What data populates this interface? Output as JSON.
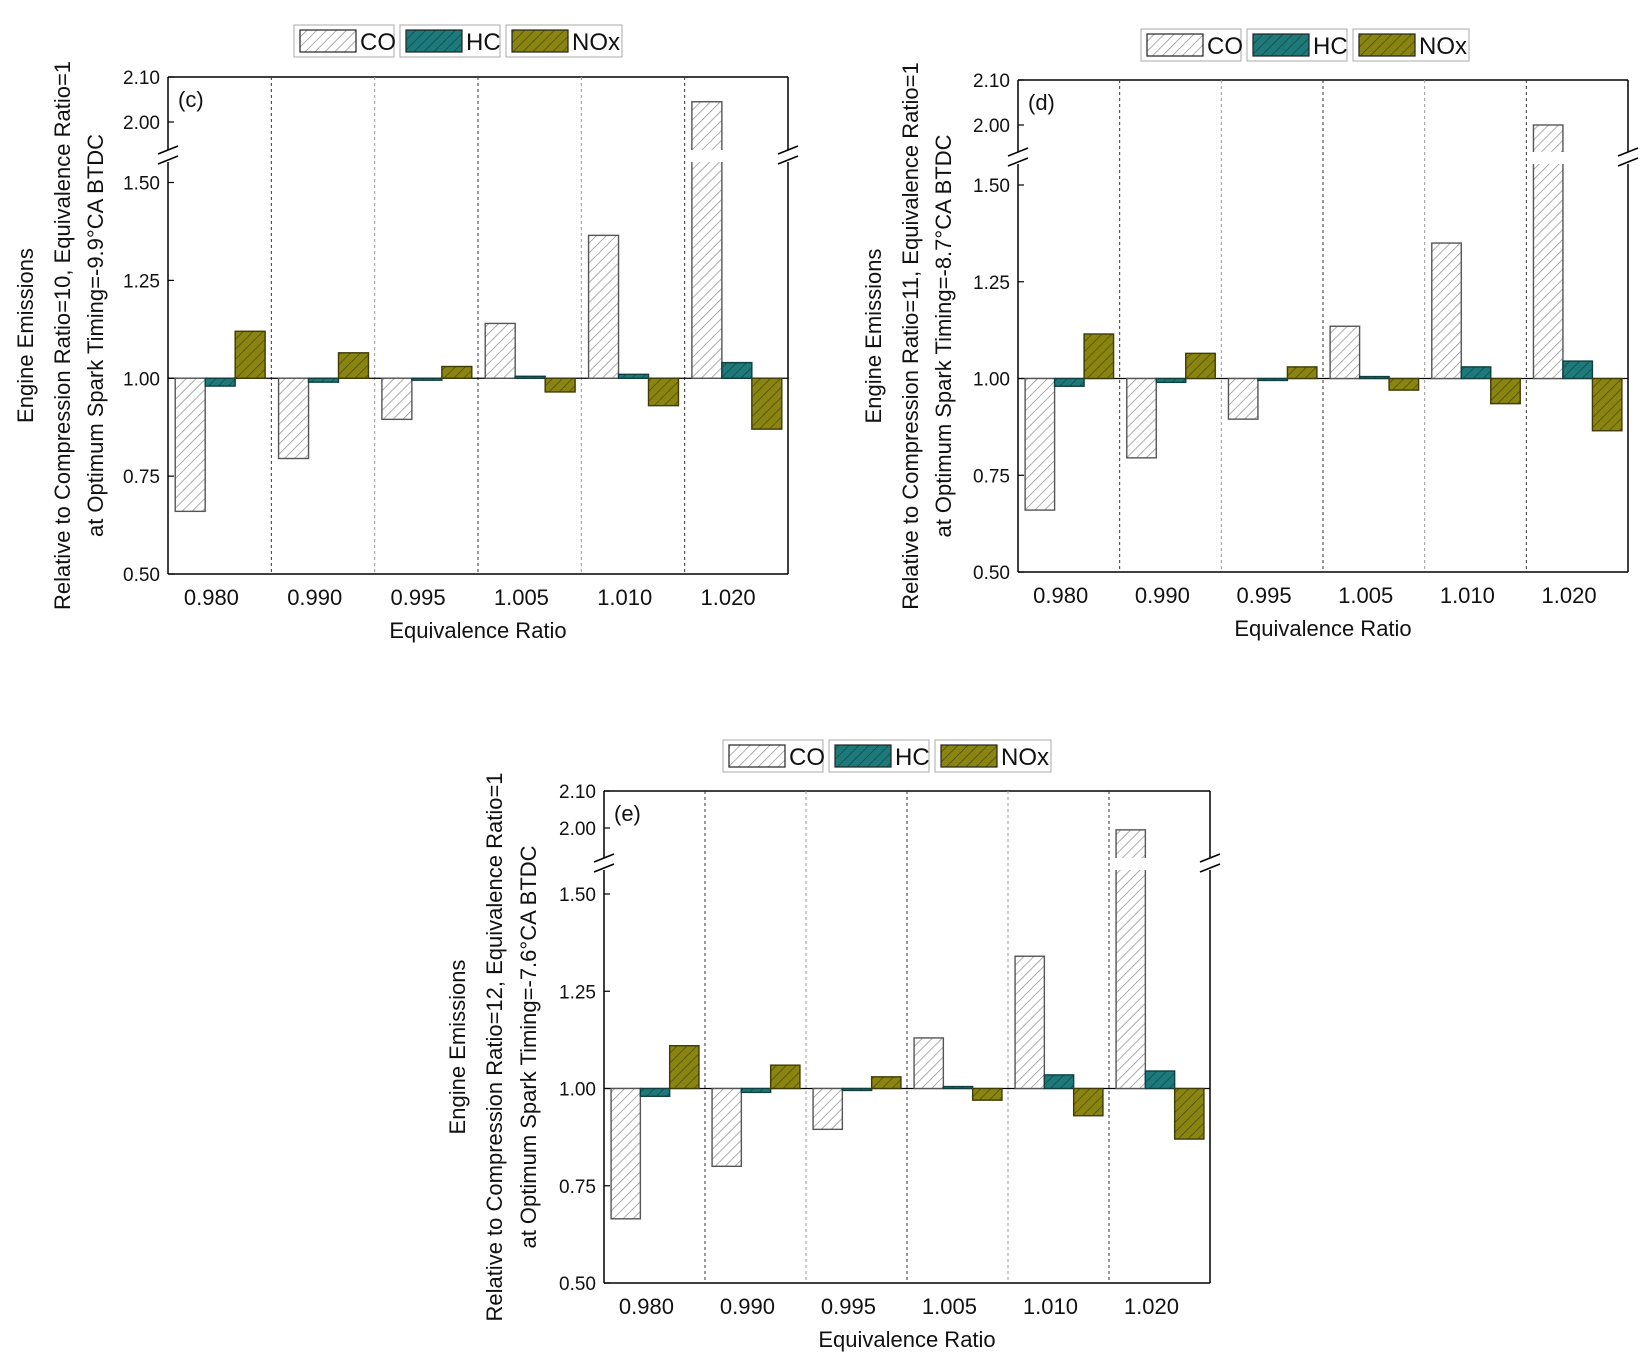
{
  "chart_data": [
    {
      "type": "bar",
      "panel_label": "(c)",
      "ylabel_lines": [
        "Engine Emissions",
        "Relative to Compression Ratio=10, Equivalence Ratio=1",
        "at Optimum Spark Timing=-9.9°CA BTDC"
      ],
      "xlabel": "Equivalence Ratio",
      "categories": [
        "0.980",
        "0.990",
        "0.995",
        "1.005",
        "1.010",
        "1.020"
      ],
      "y_ticks_lower": [
        "0.50",
        "0.75",
        "1.00",
        "1.25",
        "1.50"
      ],
      "y_ticks_upper": [
        "2.00",
        "2.10"
      ],
      "ylim_lower": [
        0.5,
        1.6
      ],
      "ylim_upper": [
        1.96,
        2.1
      ],
      "baseline": 1.0,
      "series": [
        {
          "name": "CO",
          "values": [
            0.66,
            0.795,
            0.895,
            1.14,
            1.365,
            2.045
          ]
        },
        {
          "name": "HC",
          "values": [
            0.98,
            0.99,
            0.995,
            1.005,
            1.01,
            1.04
          ]
        },
        {
          "name": "NOx",
          "values": [
            1.12,
            1.065,
            1.03,
            0.965,
            0.93,
            0.87
          ]
        }
      ]
    },
    {
      "type": "bar",
      "panel_label": "(d)",
      "ylabel_lines": [
        "Engine Emissions",
        "Relative to Compression Ratio=11, Equivalence Ratio=1",
        "at Optimum Spark Timing=-8.7°CA BTDC"
      ],
      "xlabel": "Equivalence Ratio",
      "categories": [
        "0.980",
        "0.990",
        "0.995",
        "1.005",
        "1.010",
        "1.020"
      ],
      "y_ticks_lower": [
        "0.50",
        "0.75",
        "1.00",
        "1.25",
        "1.50"
      ],
      "y_ticks_upper": [
        "2.00",
        "2.10"
      ],
      "ylim_lower": [
        0.5,
        1.6
      ],
      "ylim_upper": [
        1.96,
        2.1
      ],
      "baseline": 1.0,
      "series": [
        {
          "name": "CO",
          "values": [
            0.66,
            0.795,
            0.895,
            1.135,
            1.35,
            2.0
          ]
        },
        {
          "name": "HC",
          "values": [
            0.98,
            0.99,
            0.995,
            1.005,
            1.03,
            1.045
          ]
        },
        {
          "name": "NOx",
          "values": [
            1.115,
            1.065,
            1.03,
            0.97,
            0.935,
            0.865
          ]
        }
      ]
    },
    {
      "type": "bar",
      "panel_label": "(e)",
      "ylabel_lines": [
        "Engine Emissions",
        "Relative to Compression Ratio=12, Equivalence Ratio=1",
        "at Optimum Spark Timing=-7.6°CA BTDC"
      ],
      "xlabel": "Equivalence Ratio",
      "categories": [
        "0.980",
        "0.990",
        "0.995",
        "1.005",
        "1.010",
        "1.020"
      ],
      "y_ticks_lower": [
        "0.50",
        "0.75",
        "1.00",
        "1.25",
        "1.50"
      ],
      "y_ticks_upper": [
        "2.00",
        "2.10"
      ],
      "ylim_lower": [
        0.5,
        1.6
      ],
      "ylim_upper": [
        1.96,
        2.1
      ],
      "baseline": 1.0,
      "series": [
        {
          "name": "CO",
          "values": [
            0.665,
            0.8,
            0.895,
            1.13,
            1.34,
            1.995
          ]
        },
        {
          "name": "HC",
          "values": [
            0.98,
            0.99,
            0.995,
            1.005,
            1.035,
            1.045
          ]
        },
        {
          "name": "NOx",
          "values": [
            1.11,
            1.06,
            1.03,
            0.97,
            0.93,
            0.87
          ]
        }
      ]
    }
  ],
  "legend": [
    {
      "name": "CO",
      "fill": "#ffffff",
      "stroke": "#8a8a8a"
    },
    {
      "name": "HC",
      "fill": "#1e7a7a",
      "stroke": "#0f3f3f"
    },
    {
      "name": "NOx",
      "fill": "#8a8410",
      "stroke": "#3f3b05"
    }
  ],
  "colors": {
    "axis": "#000000",
    "divider": "#444444",
    "co_hatch": "#8a8a8a",
    "hc": "#1e7a7a",
    "nox": "#8a8410"
  }
}
